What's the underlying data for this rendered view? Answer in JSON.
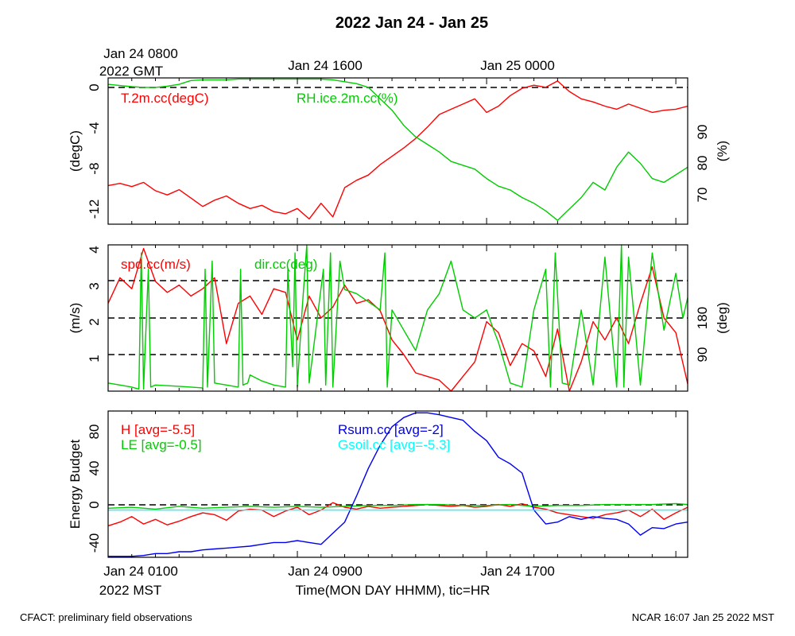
{
  "title": "2022 Jan 24 - Jan 25",
  "top_time_labels": [
    "Jan 24 0800",
    "Jan 24 1600",
    "Jan 25 0000"
  ],
  "top_timezone": "2022 GMT",
  "bottom_time_labels": [
    "Jan 24 0100",
    "Jan 24 0900",
    "Jan 24 1700"
  ],
  "bottom_timezone": "2022 MST",
  "xlabel": "Time(MON DAY HHMM), tic=HR",
  "footer_left": "CFACT: preliminary field observations",
  "footer_right": "NCAR 16:07 Jan 25 2022 MST",
  "colors": {
    "red": "#ff0000",
    "green": "#00cc00",
    "blue": "#0000ee",
    "cyan": "#00ffff",
    "black": "#000000"
  },
  "chart_data": [
    {
      "type": "line",
      "panel": "temperature-humidity",
      "x_unit": "hours since Jan 24 0100 MST",
      "xlim": [
        0,
        24.5
      ],
      "left_axis": {
        "label": "(degC)",
        "ticks": [
          "0",
          "-4",
          "-8",
          "-12"
        ],
        "ylim": [
          -13.5,
          0.5
        ],
        "dashed_ref": [
          0
        ]
      },
      "right_axis": {
        "label": "(%)",
        "ticks": [
          "90",
          "80",
          "70"
        ],
        "ylim": [
          63,
          101.5
        ]
      },
      "series": [
        {
          "name": "T.2m.cc(degC)",
          "axis": "left",
          "color": "red",
          "x": [
            0,
            0.5,
            1,
            1.5,
            2,
            2.5,
            3,
            3.5,
            4,
            4.5,
            5,
            5.5,
            6,
            6.5,
            7,
            7.5,
            8,
            8.5,
            9,
            9.5,
            10,
            10.5,
            11,
            11.5,
            12,
            12.5,
            13,
            13.5,
            14,
            14.5,
            15,
            15.5,
            16,
            16.5,
            17,
            17.5,
            18,
            18.5,
            19,
            19.5,
            20,
            20.5,
            21,
            21.5,
            22,
            22.5,
            23,
            23.5,
            24,
            24.5
          ],
          "y": [
            -9.8,
            -9.6,
            -9.9,
            -9.5,
            -10.3,
            -10.7,
            -10.2,
            -11,
            -11.8,
            -11.2,
            -10.8,
            -11.5,
            -12,
            -11.7,
            -12.3,
            -12.5,
            -12,
            -13,
            -11.5,
            -12.8,
            -10,
            -9.3,
            -8.8,
            -7.8,
            -7,
            -6.2,
            -5.3,
            -4.2,
            -3,
            -2.5,
            -2,
            -1.5,
            -2.8,
            -2.2,
            -1.2,
            -0.5,
            -0.2,
            -0.4,
            0.2,
            -0.8,
            -1.5,
            -1.8,
            -2.2,
            -2.5,
            -2,
            -2.4,
            -2.8,
            -2.6,
            -2.5,
            -2.2
          ]
        },
        {
          "name": "RH.ice.2m.cc(%)",
          "axis": "right",
          "color": "green",
          "x": [
            0,
            0.5,
            1,
            1.5,
            2,
            2.5,
            3,
            3.5,
            4,
            4.5,
            5,
            5.5,
            6,
            6.5,
            7,
            7.5,
            8,
            8.5,
            9,
            9.5,
            10,
            10.5,
            11,
            11.5,
            12,
            12.5,
            13,
            13.5,
            14,
            14.5,
            15,
            15.5,
            16,
            16.5,
            17,
            17.5,
            18,
            18.5,
            19,
            19.5,
            20,
            20.5,
            21,
            21.5,
            22,
            22.5,
            23,
            23.5,
            24,
            24.5
          ],
          "y": [
            99.8,
            99.5,
            99.2,
            99,
            99,
            99.3,
            99.8,
            100.8,
            101,
            101,
            101,
            101.2,
            101.2,
            101.2,
            101.2,
            101.2,
            101.2,
            101.2,
            101.2,
            101,
            100.5,
            100,
            99,
            96,
            93,
            89,
            86,
            84,
            82,
            79.5,
            78.5,
            77.5,
            75,
            73,
            72,
            70,
            68.5,
            66.5,
            64,
            67,
            70,
            74,
            72,
            78,
            82,
            79,
            75,
            74,
            76,
            78
          ]
        }
      ]
    },
    {
      "type": "line",
      "panel": "wind",
      "x_unit": "hours since Jan 24 0100 MST",
      "xlim": [
        0,
        24.5
      ],
      "left_axis": {
        "label": "(m/s)",
        "ticks": [
          "4",
          "3",
          "2",
          "1"
        ],
        "ylim": [
          0.2,
          4.2
        ],
        "dashed_ref": [
          3.15,
          2.1,
          1.1
        ]
      },
      "right_axis": {
        "label": "(deg)",
        "ticks": [
          "180",
          "90"
        ],
        "ylim": [
          0,
          360
        ]
      },
      "series": [
        {
          "name": "spd.cc(m/s)",
          "axis": "left",
          "color": "red",
          "x": [
            0,
            0.5,
            1,
            1.5,
            2,
            2.5,
            3,
            3.5,
            4,
            4.5,
            5,
            5.5,
            6,
            6.5,
            7,
            7.5,
            8,
            8.5,
            9,
            9.5,
            10,
            10.5,
            11,
            11.5,
            12,
            12.5,
            13,
            13.5,
            14,
            14.5,
            15,
            15.5,
            16,
            16.5,
            17,
            17.5,
            18,
            18.5,
            19,
            19.5,
            20,
            20.5,
            21,
            21.5,
            22,
            22.5,
            23,
            23.5,
            24,
            24.5
          ],
          "y": [
            2.6,
            3.3,
            3.0,
            4.1,
            3.2,
            2.9,
            3.1,
            2.8,
            3.0,
            3.3,
            1.5,
            2.6,
            2.8,
            2.3,
            3.0,
            2.9,
            1.6,
            2.8,
            2.2,
            2.5,
            3.1,
            2.6,
            2.7,
            2.4,
            1.6,
            1.2,
            0.7,
            0.6,
            0.5,
            0.2,
            0.6,
            1.0,
            2.1,
            1.8,
            0.9,
            1.5,
            1.3,
            0.6,
            1.9,
            0.2,
            1.0,
            2.1,
            1.6,
            2.2,
            1.5,
            2.6,
            3.6,
            2.2,
            1.8,
            0.4
          ]
        },
        {
          "name": "dir.cc(deg)",
          "axis": "right",
          "color": "green",
          "x": [
            0,
            0.5,
            1,
            1.3,
            1.4,
            1.5,
            1.7,
            1.8,
            2,
            3,
            4,
            4.1,
            4.2,
            4.4,
            4.5,
            5,
            5.5,
            5.6,
            5.7,
            5.9,
            6,
            6.5,
            7,
            7.5,
            7.6,
            7.8,
            7.9,
            8,
            8.2,
            8.4,
            8.5,
            9.1,
            9.2,
            9.4,
            9.5,
            9.8,
            10,
            10.5,
            11,
            11.5,
            11.7,
            11.8,
            12,
            12.5,
            13,
            13.5,
            14,
            14.5,
            15,
            15.5,
            16,
            16.3,
            16.5,
            17,
            17.5,
            18,
            18.5,
            18.7,
            18.9,
            19.2,
            19.5,
            20,
            20.5,
            21,
            21.5,
            21.7,
            21.8,
            22,
            22.5,
            23,
            23.5,
            24,
            24.3,
            24.5
          ],
          "y": [
            20,
            15,
            10,
            5,
            340,
            5,
            300,
            10,
            15,
            12,
            8,
            300,
            10,
            320,
            20,
            15,
            10,
            300,
            15,
            20,
            40,
            25,
            15,
            10,
            300,
            60,
            340,
            10,
            200,
            360,
            20,
            300,
            15,
            340,
            10,
            320,
            250,
            240,
            220,
            200,
            340,
            10,
            200,
            150,
            100,
            200,
            240,
            320,
            200,
            180,
            200,
            150,
            120,
            20,
            10,
            200,
            300,
            10,
            340,
            20,
            15,
            200,
            15,
            330,
            10,
            360,
            10,
            330,
            15,
            340,
            150,
            290,
            180,
            230
          ]
        }
      ]
    },
    {
      "type": "line",
      "panel": "energy-budget",
      "x_unit": "hours since Jan 24 0100 MST",
      "xlim": [
        0,
        24.5
      ],
      "left_axis": {
        "label": "Energy Budget",
        "ticks": [
          "80",
          "40",
          "0",
          "-40"
        ],
        "ylim": [
          -56,
          102
        ],
        "dashed_ref": [
          0
        ]
      },
      "series": [
        {
          "name": "H [avg=-5.5]",
          "color": "red",
          "x": [
            0,
            0.5,
            1,
            1.5,
            2,
            2.5,
            3,
            3.5,
            4,
            4.5,
            5,
            5.5,
            6,
            6.5,
            7,
            7.5,
            8,
            8.5,
            9,
            9.5,
            10,
            10.5,
            11,
            11.5,
            12,
            12.5,
            13,
            13.5,
            14,
            14.5,
            15,
            15.5,
            16,
            16.5,
            17,
            17.5,
            18,
            18.5,
            19,
            19.5,
            20,
            20.5,
            21,
            21.5,
            22,
            22.5,
            23,
            23.5,
            24,
            24.5
          ],
          "y": [
            -22,
            -18,
            -12,
            -20,
            -15,
            -21,
            -17,
            -12,
            -8,
            -10,
            -16,
            -6,
            -4,
            -5,
            -12,
            -6,
            -2,
            -10,
            -5,
            3,
            -2,
            -4,
            -1,
            -3,
            -2,
            -1,
            0,
            1,
            0,
            -1,
            0,
            -2,
            -1,
            1,
            -1,
            2,
            -2,
            -4,
            -8,
            -10,
            -12,
            -14,
            -10,
            -8,
            -5,
            -12,
            -4,
            -15,
            -8,
            -2
          ]
        },
        {
          "name": "LE [avg=-0.5]",
          "color": "green",
          "x": [
            0,
            1,
            2,
            3,
            4,
            5,
            6,
            7,
            8,
            9,
            10,
            11,
            12,
            13,
            14,
            15,
            16,
            17,
            18,
            19,
            20,
            21,
            22,
            23,
            24,
            24.5
          ],
          "y": [
            -3,
            -2,
            -4,
            -1,
            -3,
            -2,
            -1,
            -2,
            -1,
            -2,
            -1,
            0,
            0,
            1,
            1,
            0,
            0,
            1,
            -1,
            0,
            0,
            1,
            1,
            1,
            2,
            1
          ]
        },
        {
          "name": "Rsum.cc [avg=-2]",
          "color": "blue",
          "x": [
            0,
            0.5,
            1,
            1.5,
            2,
            2.5,
            3,
            3.5,
            4,
            4.5,
            5,
            5.5,
            6,
            6.5,
            7,
            7.5,
            8,
            8.5,
            9,
            9.5,
            10,
            10.5,
            11,
            11.5,
            12,
            12.5,
            13,
            13.5,
            14,
            14.5,
            15,
            15.5,
            16,
            16.5,
            17,
            17.5,
            18,
            18.5,
            19,
            19.5,
            20,
            20.5,
            21,
            21.5,
            22,
            22.5,
            23,
            23.5,
            24,
            24.5
          ],
          "y": [
            -55,
            -55,
            -55,
            -54,
            -52,
            -52,
            -50,
            -50,
            -48,
            -47,
            -46,
            -45,
            -44,
            -42,
            -40,
            -40,
            -38,
            -40,
            -42,
            -30,
            -18,
            10,
            40,
            65,
            85,
            95,
            100,
            100,
            98,
            95,
            92,
            80,
            70,
            52,
            45,
            35,
            -5,
            -20,
            -18,
            -12,
            -15,
            -12,
            -14,
            -15,
            -20,
            -32,
            -24,
            -25,
            -20,
            -18
          ]
        },
        {
          "name": "Gsoil.cc [avg=-5.3]",
          "color": "cyan",
          "x": [
            0,
            24.5
          ],
          "y": [
            -5,
            -5
          ]
        }
      ]
    }
  ]
}
